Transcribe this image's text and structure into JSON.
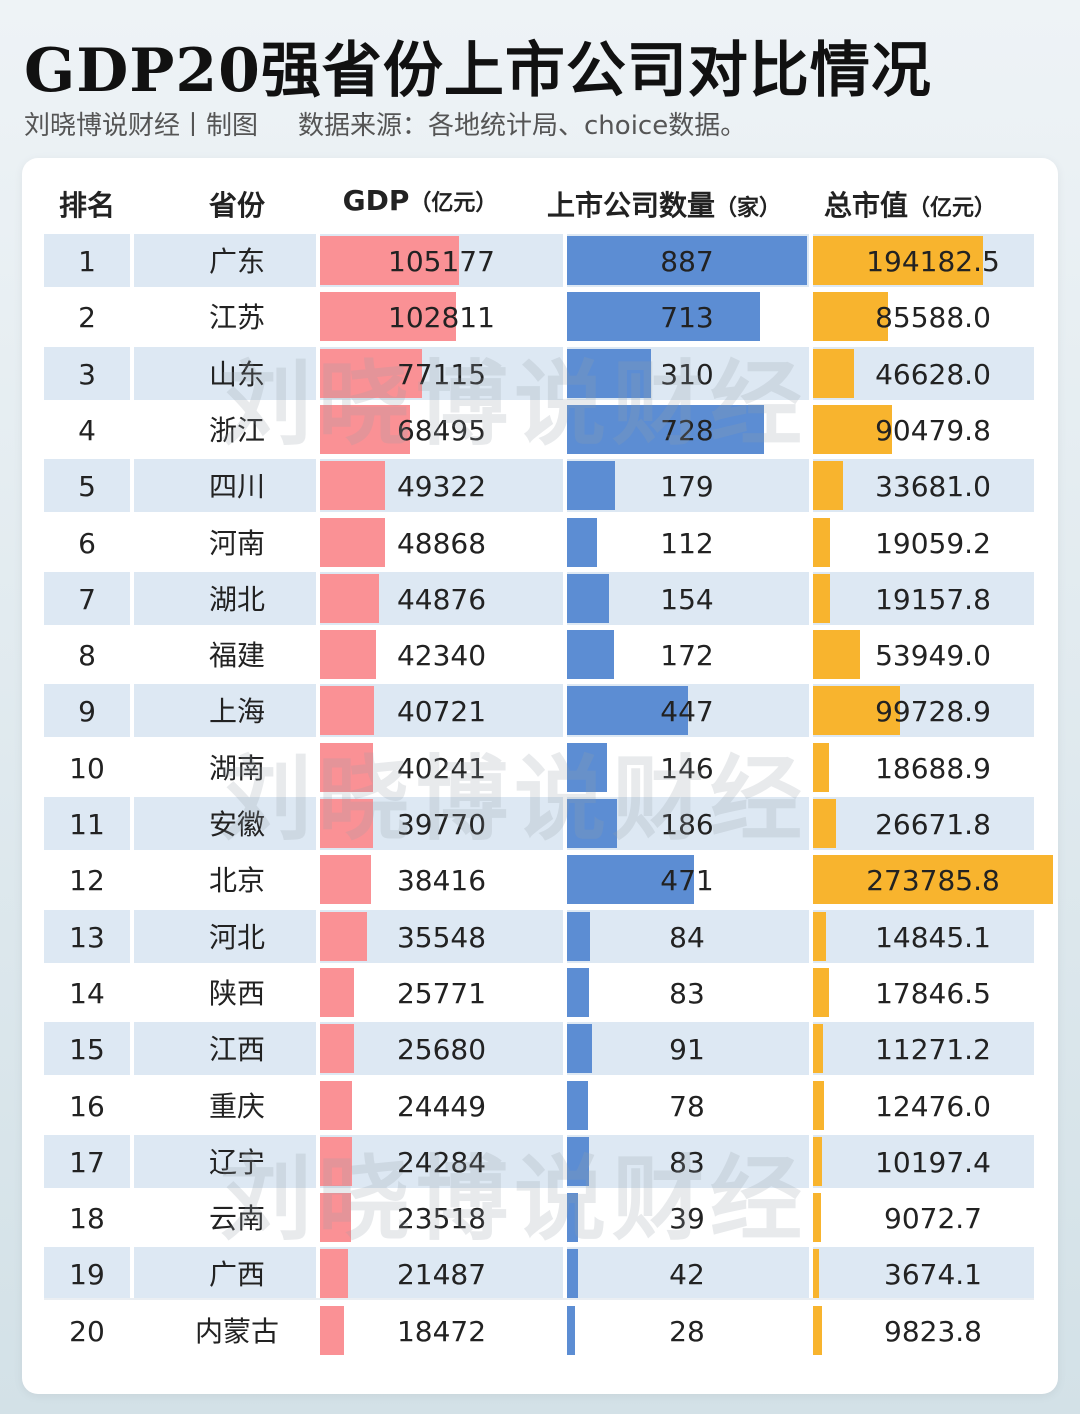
{
  "title": "GDP20强省份上市公司对比情况",
  "subtitle": {
    "author": "刘晓博说财经丨制图",
    "source": "数据来源：各地统计局、choice数据。"
  },
  "watermark": "刘晓博说财经",
  "colors": {
    "gdp": "#fa9195",
    "count": "#5c8dd3",
    "cap": "#f8b42e",
    "row_alt": "#dde8f3"
  },
  "chart_data": {
    "type": "table",
    "columns": [
      {
        "label": "排名",
        "unit": ""
      },
      {
        "label": "省份",
        "unit": ""
      },
      {
        "label": "GDP",
        "unit": "（亿元）"
      },
      {
        "label": "上市公司数量",
        "unit": "（家）"
      },
      {
        "label": "总市值",
        "unit": "（亿元）"
      }
    ],
    "rows": [
      {
        "rank": "1",
        "province": "广东",
        "gdp": "105177",
        "count": "887",
        "cap": "194182.5"
      },
      {
        "rank": "2",
        "province": "江苏",
        "gdp": "102811",
        "count": "713",
        "cap": "85588.0"
      },
      {
        "rank": "3",
        "province": "山东",
        "gdp": "77115",
        "count": "310",
        "cap": "46628.0"
      },
      {
        "rank": "4",
        "province": "浙江",
        "gdp": "68495",
        "count": "728",
        "cap": "90479.8"
      },
      {
        "rank": "5",
        "province": "四川",
        "gdp": "49322",
        "count": "179",
        "cap": "33681.0"
      },
      {
        "rank": "6",
        "province": "河南",
        "gdp": "48868",
        "count": "112",
        "cap": "19059.2"
      },
      {
        "rank": "7",
        "province": "湖北",
        "gdp": "44876",
        "count": "154",
        "cap": "19157.8"
      },
      {
        "rank": "8",
        "province": "福建",
        "gdp": "42340",
        "count": "172",
        "cap": "53949.0"
      },
      {
        "rank": "9",
        "province": "上海",
        "gdp": "40721",
        "count": "447",
        "cap": "99728.9"
      },
      {
        "rank": "10",
        "province": "湖南",
        "gdp": "40241",
        "count": "146",
        "cap": "18688.9"
      },
      {
        "rank": "11",
        "province": "安徽",
        "gdp": "39770",
        "count": "186",
        "cap": "26671.8"
      },
      {
        "rank": "12",
        "province": "北京",
        "gdp": "38416",
        "count": "471",
        "cap": "273785.8"
      },
      {
        "rank": "13",
        "province": "河北",
        "gdp": "35548",
        "count": "84",
        "cap": "14845.1"
      },
      {
        "rank": "14",
        "province": "陕西",
        "gdp": "25771",
        "count": "83",
        "cap": "17846.5"
      },
      {
        "rank": "15",
        "province": "江西",
        "gdp": "25680",
        "count": "91",
        "cap": "11271.2"
      },
      {
        "rank": "16",
        "province": "重庆",
        "gdp": "24449",
        "count": "78",
        "cap": "12476.0"
      },
      {
        "rank": "17",
        "province": "辽宁",
        "gdp": "24284",
        "count": "83",
        "cap": "10197.4"
      },
      {
        "rank": "18",
        "province": "云南",
        "gdp": "23518",
        "count": "39",
        "cap": "9072.7"
      },
      {
        "rank": "19",
        "province": "广西",
        "gdp": "21487",
        "count": "42",
        "cap": "3674.1"
      },
      {
        "rank": "20",
        "province": "内蒙古",
        "gdp": "18472",
        "count": "28",
        "cap": "9823.8"
      }
    ]
  }
}
